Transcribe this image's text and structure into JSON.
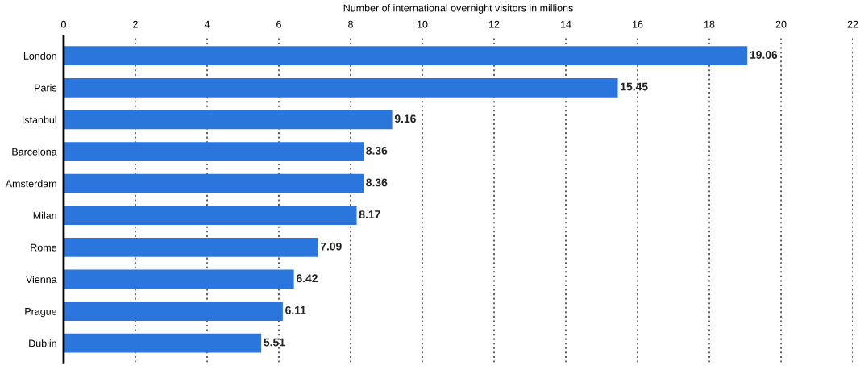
{
  "chart_data": {
    "type": "bar",
    "orientation": "horizontal",
    "xlabel": "Number of international overnight visitors in millions",
    "categories": [
      "London",
      "Paris",
      "Istanbul",
      "Barcelona",
      "Amsterdam",
      "Milan",
      "Rome",
      "Vienna",
      "Prague",
      "Dublin"
    ],
    "values": [
      19.06,
      15.45,
      9.16,
      8.36,
      8.36,
      8.17,
      7.09,
      6.42,
      6.11,
      5.51
    ],
    "color": "#2a76dd",
    "xlim": [
      0,
      22
    ],
    "xticks": [
      0,
      2,
      4,
      6,
      8,
      10,
      12,
      14,
      16,
      18,
      20,
      22
    ],
    "grid": "x",
    "data_labels": true
  }
}
